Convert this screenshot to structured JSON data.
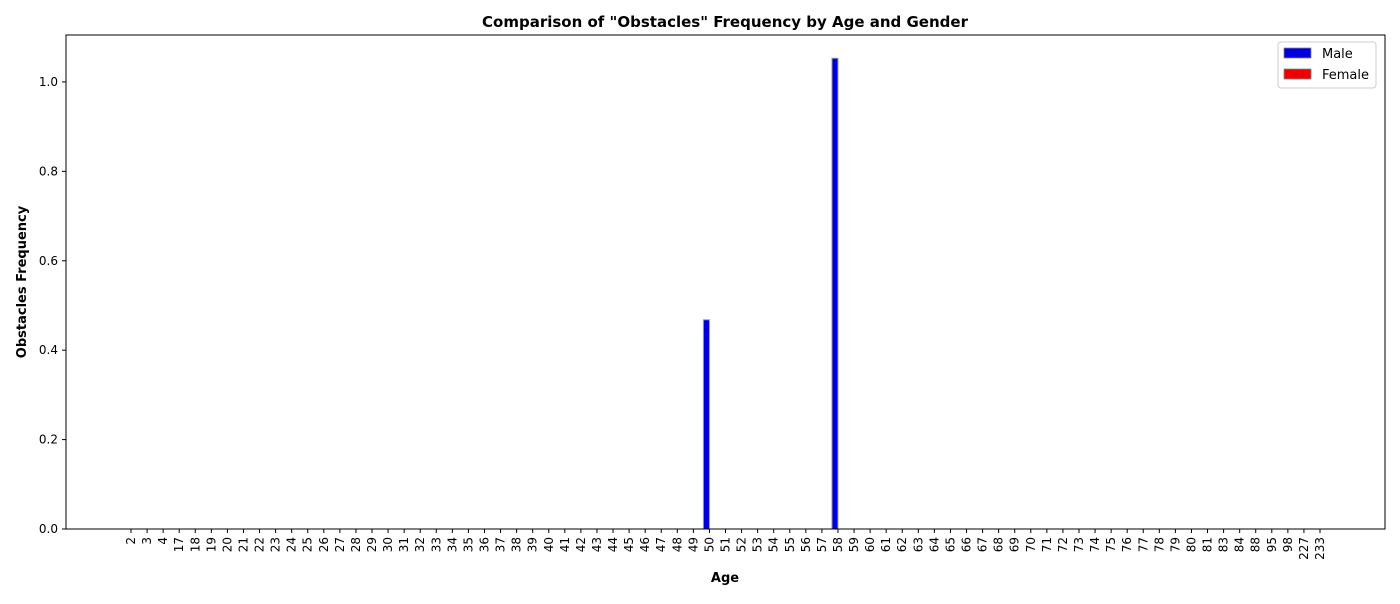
{
  "chart_data": {
    "type": "bar",
    "title": "Comparison of \"Obstacles\" Frequency by Age and Gender",
    "xlabel": "Age",
    "ylabel": "Obstacles Frequency",
    "ylim": [
      0,
      1.105
    ],
    "yticks": [
      "0.0",
      "0.2",
      "0.4",
      "0.6",
      "0.8",
      "1.0"
    ],
    "categories": [
      "2",
      "3",
      "4",
      "17",
      "18",
      "19",
      "20",
      "21",
      "22",
      "23",
      "24",
      "25",
      "26",
      "27",
      "28",
      "29",
      "30",
      "31",
      "32",
      "33",
      "34",
      "35",
      "36",
      "37",
      "38",
      "39",
      "40",
      "41",
      "42",
      "43",
      "44",
      "45",
      "46",
      "47",
      "48",
      "49",
      "50",
      "51",
      "52",
      "53",
      "54",
      "55",
      "56",
      "57",
      "58",
      "59",
      "60",
      "61",
      "62",
      "63",
      "64",
      "65",
      "66",
      "67",
      "68",
      "69",
      "70",
      "71",
      "72",
      "73",
      "74",
      "75",
      "76",
      "77",
      "78",
      "79",
      "80",
      "81",
      "83",
      "84",
      "88",
      "95",
      "98",
      "227",
      "233"
    ],
    "series": [
      {
        "name": "Male",
        "color": "#0000dd",
        "values": [
          0,
          0,
          0,
          0,
          0,
          0,
          0,
          0,
          0,
          0,
          0,
          0,
          0,
          0,
          0,
          0,
          0,
          0,
          0,
          0,
          0,
          0,
          0,
          0,
          0,
          0,
          0,
          0,
          0,
          0,
          0,
          0,
          0,
          0,
          0,
          0,
          0.468,
          0,
          0,
          0,
          0,
          0,
          0,
          0,
          1.053,
          0,
          0,
          0,
          0,
          0,
          0,
          0,
          0,
          0,
          0,
          0,
          0,
          0,
          0,
          0,
          0,
          0,
          0,
          0,
          0,
          0,
          0,
          0,
          0,
          0,
          0,
          0,
          0,
          0,
          0
        ]
      },
      {
        "name": "Female",
        "color": "#ee0000",
        "values": [
          0,
          0,
          0,
          0,
          0,
          0,
          0,
          0,
          0,
          0,
          0,
          0,
          0,
          0,
          0,
          0,
          0,
          0,
          0,
          0,
          0,
          0,
          0,
          0,
          0,
          0,
          0,
          0,
          0,
          0,
          0,
          0,
          0,
          0,
          0,
          0,
          0,
          0,
          0,
          0,
          0,
          0,
          0,
          0,
          0,
          0,
          0,
          0,
          0,
          0,
          0,
          0,
          0,
          0,
          0,
          0,
          0,
          0,
          0,
          0,
          0,
          0,
          0,
          0,
          0,
          0,
          0,
          0,
          0,
          0,
          0,
          0,
          0,
          0,
          0
        ]
      }
    ],
    "legend": {
      "position": "top-right"
    },
    "grid": false
  }
}
